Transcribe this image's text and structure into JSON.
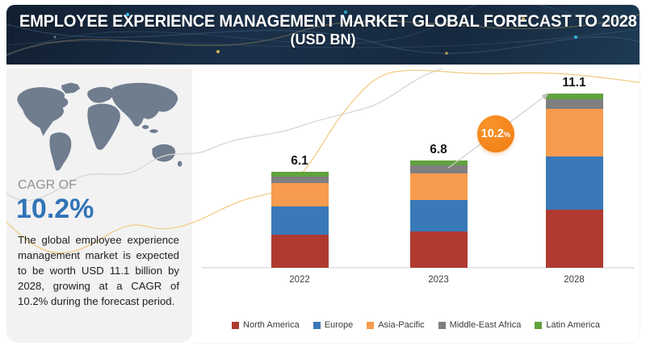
{
  "header": {
    "title_line1": "EMPLOYEE EXPERIENCE MANAGEMENT MARKET GLOBAL FORECAST TO 2028",
    "title_line2": "(USD BN)"
  },
  "sidebar": {
    "cagr_label": "CAGR OF",
    "cagr_value": "10.2%",
    "description": "The global employee experience management market is expected to be worth USD 11.1 billion by 2028, growing at a CAGR of 10.2% during the forecast period."
  },
  "badge": {
    "value": "10.2",
    "suffix": "%"
  },
  "colors": {
    "header_navy": "#16293e",
    "sidebar_bg": "#f2f2f3",
    "cagr_blue": "#3174b7",
    "badge_orange": "#f07c12",
    "map_fill": "#6f7d8e",
    "curve_gray": "#d6d6d6",
    "curve_yellow": "#f0cd84"
  },
  "chart_data": {
    "type": "bar",
    "stacked": true,
    "title": "EMPLOYEE EXPERIENCE MANAGEMENT MARKET GLOBAL FORECAST TO 2028 (USD BN)",
    "categories": [
      "2022",
      "2023",
      "2028"
    ],
    "totals": [
      6.1,
      6.8,
      11.1
    ],
    "series": [
      {
        "name": "North America",
        "color": "#b03a30",
        "values": [
          2.1,
          2.3,
          3.7
        ]
      },
      {
        "name": "Europe",
        "color": "#3a79b8",
        "values": [
          1.8,
          2.0,
          3.4
        ]
      },
      {
        "name": "Asia-Pacific",
        "color": "#f79b4e",
        "values": [
          1.5,
          1.7,
          3.0
        ]
      },
      {
        "name": "Middle-East Africa",
        "color": "#7f7f7f",
        "values": [
          0.4,
          0.5,
          0.6
        ]
      },
      {
        "name": "Latin America",
        "color": "#61a23d",
        "values": [
          0.3,
          0.3,
          0.4
        ]
      }
    ],
    "ylabel": "USD BN",
    "ylim": [
      0,
      11.5
    ],
    "grid": false,
    "legend_position": "bottom",
    "cagr_annotation": "10.2%"
  }
}
